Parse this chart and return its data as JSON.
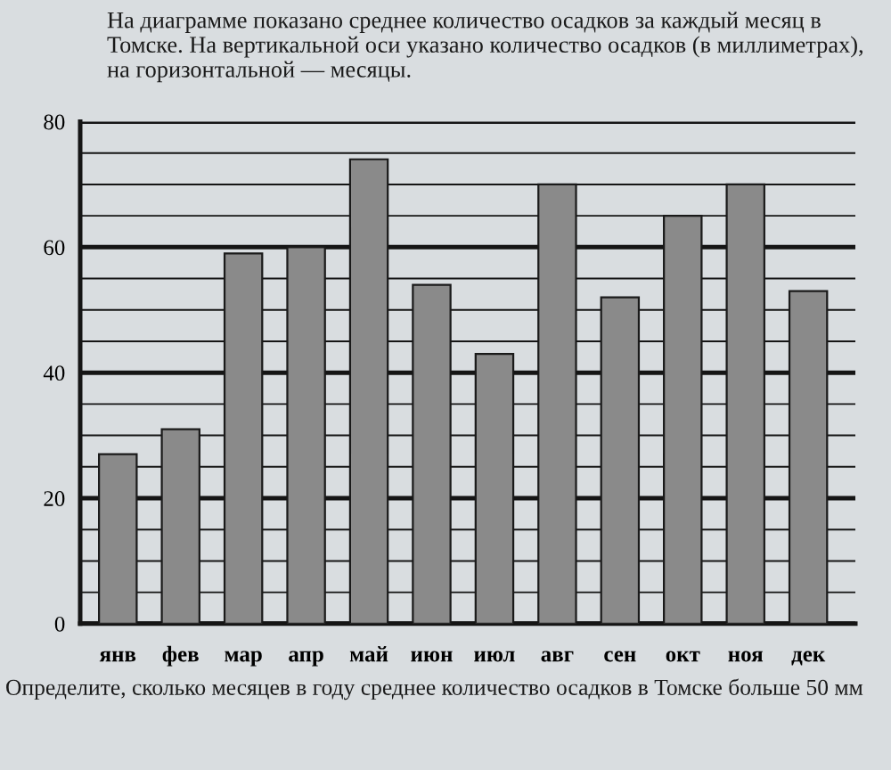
{
  "chart_data": {
    "type": "bar",
    "title": "На диаграмме показано среднее количество осадков за каждый месяц в Томске. На вертикальной оси указано количество осадков (в миллиметрах), на горизонтальной — месяцы.",
    "categories": [
      "янв",
      "фев",
      "мар",
      "апр",
      "май",
      "июн",
      "июл",
      "авг",
      "сен",
      "окт",
      "ноя",
      "дек"
    ],
    "values": [
      27,
      31,
      59,
      60,
      74,
      54,
      43,
      70,
      52,
      65,
      70,
      53
    ],
    "color": "#8a8a8a",
    "ylim": [
      0,
      80
    ],
    "yticks": [
      0,
      {
        "value": 5,
        "label": null
      },
      {
        "value": 10,
        "label": null
      },
      {
        "value": 15,
        "label": null
      },
      20,
      {
        "value": 25,
        "label": null
      },
      {
        "value": 30,
        "label": null
      },
      {
        "value": 35,
        "label": null
      },
      40,
      {
        "value": 45,
        "label": null
      },
      {
        "value": 50,
        "label": null
      },
      {
        "value": 55,
        "label": null
      },
      60,
      {
        "value": 65,
        "label": null
      },
      {
        "value": 70,
        "label": null
      },
      {
        "value": 75,
        "label": null
      },
      80
    ],
    "grid": "y",
    "annotations": [
      "Определите, сколько месяцев в году среднее количество осадков в Томске больше 50 мм"
    ]
  }
}
